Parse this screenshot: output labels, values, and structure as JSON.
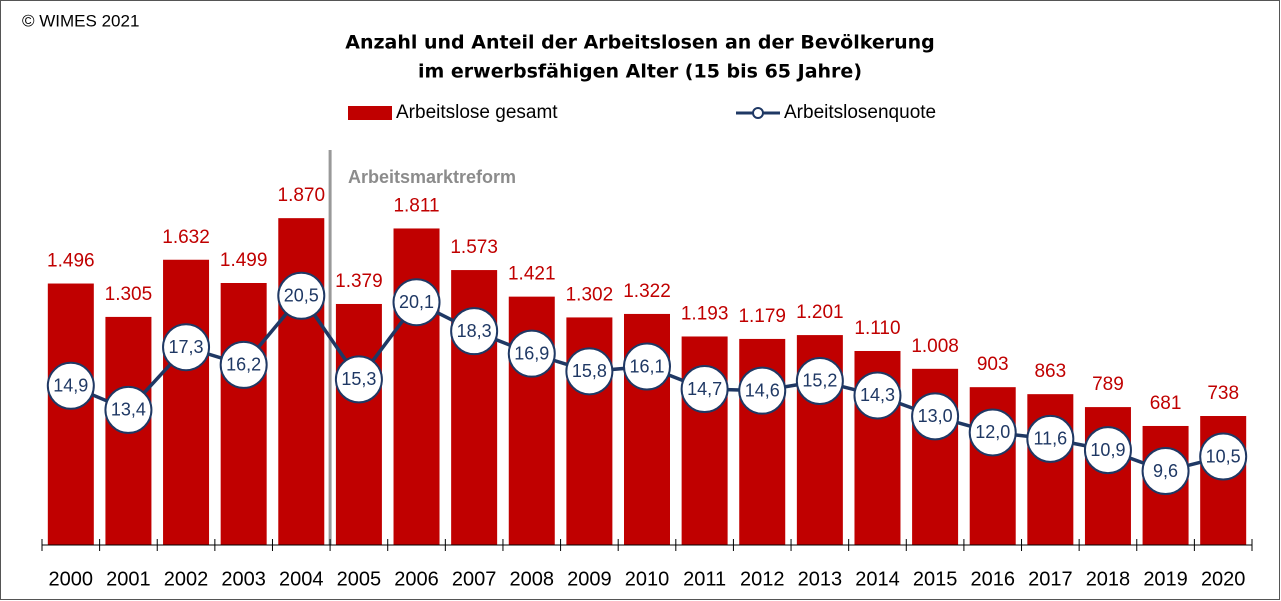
{
  "chart_data": {
    "type": "bar_line",
    "copyright": "© WIMES 2021",
    "title": [
      "Anzahl und Anteil der Arbeitslosen an der Bevölkerung",
      "im erwerbsfähigen Alter (15 bis 65 Jahre)"
    ],
    "annotation": "Arbeitsmarktreform",
    "categories": [
      "2000",
      "2001",
      "2002",
      "2003",
      "2004",
      "2005",
      "2006",
      "2007",
      "2008",
      "2009",
      "2010",
      "2011",
      "2012",
      "2013",
      "2014",
      "2015",
      "2016",
      "2017",
      "2018",
      "2019",
      "2020"
    ],
    "ylim": [
      0,
      2300
    ],
    "y2lim": [
      5,
      30
    ],
    "series": [
      {
        "name": "Arbeitslose gesamt",
        "color": "#c00000",
        "type": "bar",
        "values": [
          1496,
          1305,
          1632,
          1499,
          1870,
          1379,
          1811,
          1573,
          1421,
          1302,
          1322,
          1193,
          1179,
          1201,
          1110,
          1008,
          903,
          863,
          789,
          681,
          738
        ],
        "value_labels": [
          "1.496",
          "1.305",
          "1.632",
          "1.499",
          "1.870",
          "1.379",
          "1.811",
          "1.573",
          "1.421",
          "1.302",
          "1.322",
          "1.193",
          "1.179",
          "1.201",
          "1.110",
          "1.008",
          "903",
          "863",
          "789",
          "681",
          "738"
        ]
      },
      {
        "name": "Arbeitslosenquote",
        "color": "#1f3864",
        "type": "line",
        "axis": "y2",
        "values": [
          14.9,
          13.4,
          17.3,
          16.2,
          20.5,
          15.3,
          20.1,
          18.3,
          16.9,
          15.8,
          16.1,
          14.7,
          14.6,
          15.2,
          14.3,
          13.0,
          12.0,
          11.6,
          10.9,
          9.6,
          10.5
        ],
        "value_labels": [
          "14,9",
          "13,4",
          "17,3",
          "16,2",
          "20,5",
          "15,3",
          "20,1",
          "18,3",
          "16,9",
          "15,8",
          "16,1",
          "14,7",
          "14,6",
          "15,2",
          "14,3",
          "13,0",
          "12,0",
          "11,6",
          "10,9",
          "9,6",
          "10,5"
        ]
      }
    ]
  }
}
